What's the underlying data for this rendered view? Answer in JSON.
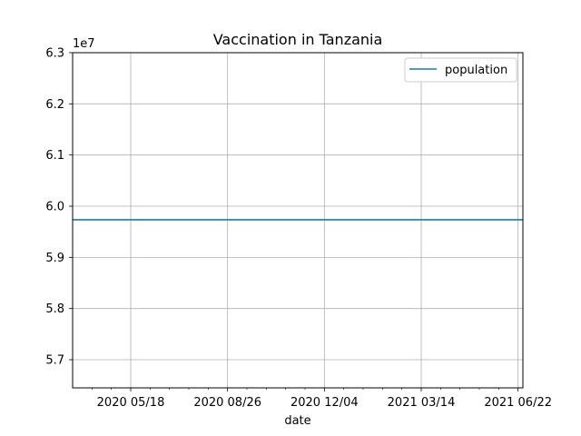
{
  "chart_data": {
    "type": "line",
    "title": "Vaccination in Tanzania",
    "xlabel": "date",
    "ylabel": "",
    "y_offset_label": "1e7",
    "grid": true,
    "legend_placement": "top-right",
    "x_ticks": [
      "2020 05/18",
      "2020 08/26",
      "2020 12/04",
      "2021 03/14",
      "2021 06/22"
    ],
    "x_minor_ticks": [
      "2020 04/08",
      "2020 04/28",
      "2020 06/07",
      "2020 06/27",
      "2020 07/17",
      "2020 08/06",
      "2020 09/15",
      "2020 10/05",
      "2020 10/25",
      "2020 11/14",
      "2020 12/24",
      "2021 01/13",
      "2021 02/02",
      "2021 02/22",
      "2021 04/03",
      "2021 04/23",
      "2021 05/13",
      "2021 06/02"
    ],
    "x_range": [
      "2020 03/19",
      "2021 06/27"
    ],
    "y_ticks": [
      "5.7",
      "5.8",
      "5.9",
      "6.0",
      "6.1",
      "6.2",
      "6.3"
    ],
    "y_tick_values": [
      57000000,
      58000000,
      59000000,
      60000000,
      61000000,
      62000000,
      63000000
    ],
    "ylim": [
      56450000,
      63000000
    ],
    "series": [
      {
        "name": "population",
        "color": "#1f77b4",
        "x": [
          "2020 03/19",
          "2021 06/27"
        ],
        "y": [
          59734213,
          59734213
        ]
      }
    ]
  }
}
